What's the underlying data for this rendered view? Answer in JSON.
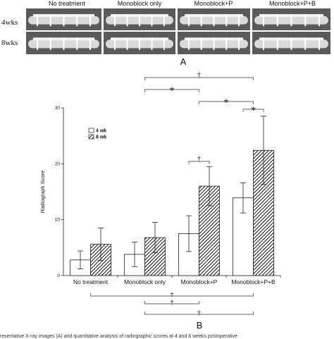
{
  "panel_a": {
    "column_labels": [
      "No treatment",
      "Monoblock only",
      "Monoblock+P",
      "Monoblock+P+B"
    ],
    "row_labels": [
      "4wks",
      "8wks"
    ],
    "panel_label": "A"
  },
  "panel_b_label": "B",
  "caption_fragment": "resentative X-ray images (A) and quantitative analysis of radiographic scores at 4 and 8 weeks postoperative",
  "chart_data": {
    "type": "bar",
    "title": "",
    "xlabel": "",
    "ylabel": "Radiograph Score",
    "ylim": [
      0,
      30
    ],
    "yticks": [
      "0",
      "10",
      "20",
      "30"
    ],
    "grid": false,
    "legend_placement": "top-left",
    "categories": [
      "No treatment",
      "Monoblock only",
      "Monoblock+P",
      "Monoblock+P+B"
    ],
    "series": [
      {
        "name": "4 wk",
        "fill": "#ffffff",
        "values": [
          2.8,
          3.8,
          7.5,
          13.9
        ],
        "errors": [
          1.6,
          2.2,
          3.2,
          2.7
        ]
      },
      {
        "name": "8 wk",
        "fill": "hatched",
        "values": [
          5.6,
          6.8,
          16.0,
          22.4
        ],
        "errors": [
          2.9,
          2.7,
          3.5,
          6.1
        ]
      }
    ],
    "significance": [
      {
        "symbol": "†",
        "from": "Monoblock only",
        "to": "Monoblock+P+B",
        "position": "above"
      },
      {
        "symbol": "*",
        "from": "Monoblock only",
        "to": "Monoblock+P",
        "position": "above"
      },
      {
        "symbol": "*",
        "from": "Monoblock+P",
        "to": "Monoblock+P+B",
        "position": "above"
      },
      {
        "symbol": "*",
        "from": "No treatment",
        "to": "Monoblock+P+B",
        "position": "above"
      },
      {
        "symbol": "*",
        "from": "Monoblock+P+B 4 wk",
        "to": "Monoblock+P+B 8 wk",
        "position": "above"
      },
      {
        "symbol": "†",
        "from": "Monoblock+P 4 wk",
        "to": "Monoblock+P 8 wk",
        "position": "above"
      },
      {
        "symbol": "†",
        "from": "No treatment",
        "to": "Monoblock+P+B",
        "position": "below"
      },
      {
        "symbol": "†",
        "from": "Monoblock only",
        "to": "Monoblock+P",
        "position": "below"
      },
      {
        "symbol": "†",
        "from": "Monoblock only",
        "to": "Monoblock+P+B",
        "position": "below"
      }
    ]
  }
}
